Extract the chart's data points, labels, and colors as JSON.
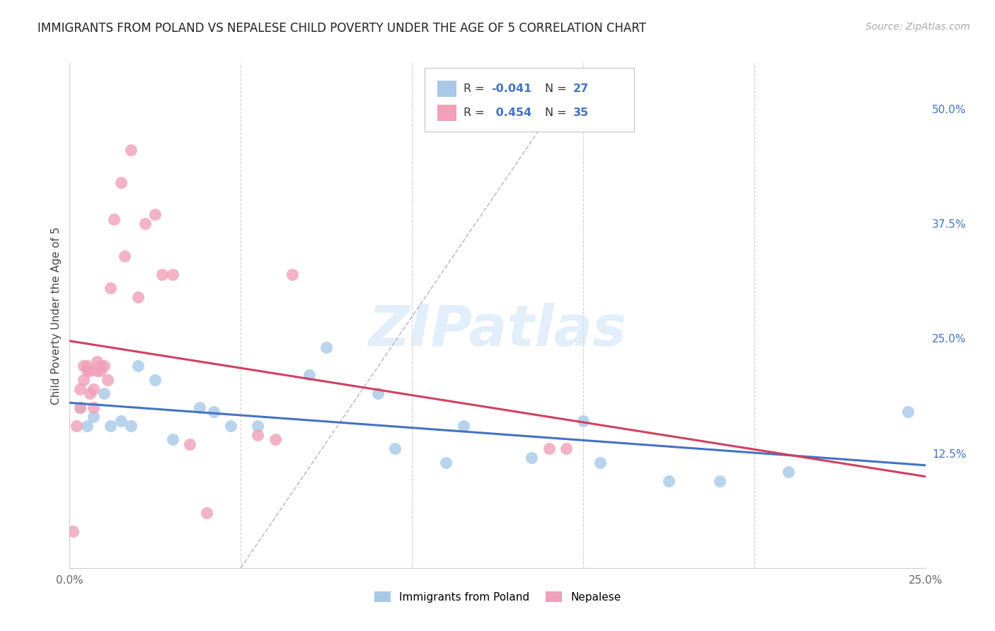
{
  "title": "IMMIGRANTS FROM POLAND VS NEPALESE CHILD POVERTY UNDER THE AGE OF 5 CORRELATION CHART",
  "source": "Source: ZipAtlas.com",
  "ylabel": "Child Poverty Under the Age of 5",
  "xlim": [
    0.0,
    0.25
  ],
  "ylim": [
    0.0,
    0.55
  ],
  "xticks": [
    0.0,
    0.05,
    0.1,
    0.15,
    0.2,
    0.25
  ],
  "xticklabels": [
    "0.0%",
    "",
    "",
    "",
    "",
    "25.0%"
  ],
  "yticks_right": [
    0.125,
    0.25,
    0.375,
    0.5
  ],
  "ytick_right_labels": [
    "12.5%",
    "25.0%",
    "37.5%",
    "50.0%"
  ],
  "background_color": "#ffffff",
  "grid_color": "#d0d0d0",
  "watermark_text": "ZIPatlas",
  "legend_label1": "Immigrants from Poland",
  "legend_label2": "Nepalese",
  "blue_color": "#a8c8e8",
  "pink_color": "#f0a0b8",
  "blue_line_color": "#4472c4",
  "pink_line_color": "#d04060",
  "title_color": "#222222",
  "source_color": "#aaaaaa",
  "right_tick_color": "#4472c4",
  "r1_val": "-0.041",
  "n1_val": "27",
  "r2_val": "0.454",
  "n2_val": "35",
  "poland_x": [
    0.003,
    0.005,
    0.007,
    0.01,
    0.012,
    0.015,
    0.018,
    0.02,
    0.025,
    0.03,
    0.038,
    0.042,
    0.047,
    0.055,
    0.07,
    0.075,
    0.09,
    0.095,
    0.11,
    0.115,
    0.135,
    0.15,
    0.155,
    0.175,
    0.19,
    0.21,
    0.245
  ],
  "poland_y": [
    0.175,
    0.155,
    0.165,
    0.19,
    0.155,
    0.16,
    0.155,
    0.22,
    0.205,
    0.14,
    0.175,
    0.17,
    0.155,
    0.155,
    0.21,
    0.24,
    0.19,
    0.13,
    0.115,
    0.155,
    0.12,
    0.16,
    0.115,
    0.095,
    0.095,
    0.105,
    0.17
  ],
  "nepal_x": [
    0.001,
    0.002,
    0.003,
    0.003,
    0.004,
    0.004,
    0.005,
    0.005,
    0.006,
    0.006,
    0.007,
    0.007,
    0.008,
    0.008,
    0.009,
    0.009,
    0.01,
    0.011,
    0.012,
    0.013,
    0.015,
    0.016,
    0.018,
    0.02,
    0.022,
    0.025,
    0.027,
    0.03,
    0.035,
    0.04,
    0.055,
    0.06,
    0.065,
    0.14,
    0.145
  ],
  "nepal_y": [
    0.04,
    0.155,
    0.175,
    0.195,
    0.205,
    0.22,
    0.22,
    0.215,
    0.19,
    0.215,
    0.195,
    0.175,
    0.215,
    0.225,
    0.215,
    0.22,
    0.22,
    0.205,
    0.305,
    0.38,
    0.42,
    0.34,
    0.455,
    0.295,
    0.375,
    0.385,
    0.32,
    0.32,
    0.135,
    0.06,
    0.145,
    0.14,
    0.32,
    0.13,
    0.13
  ]
}
